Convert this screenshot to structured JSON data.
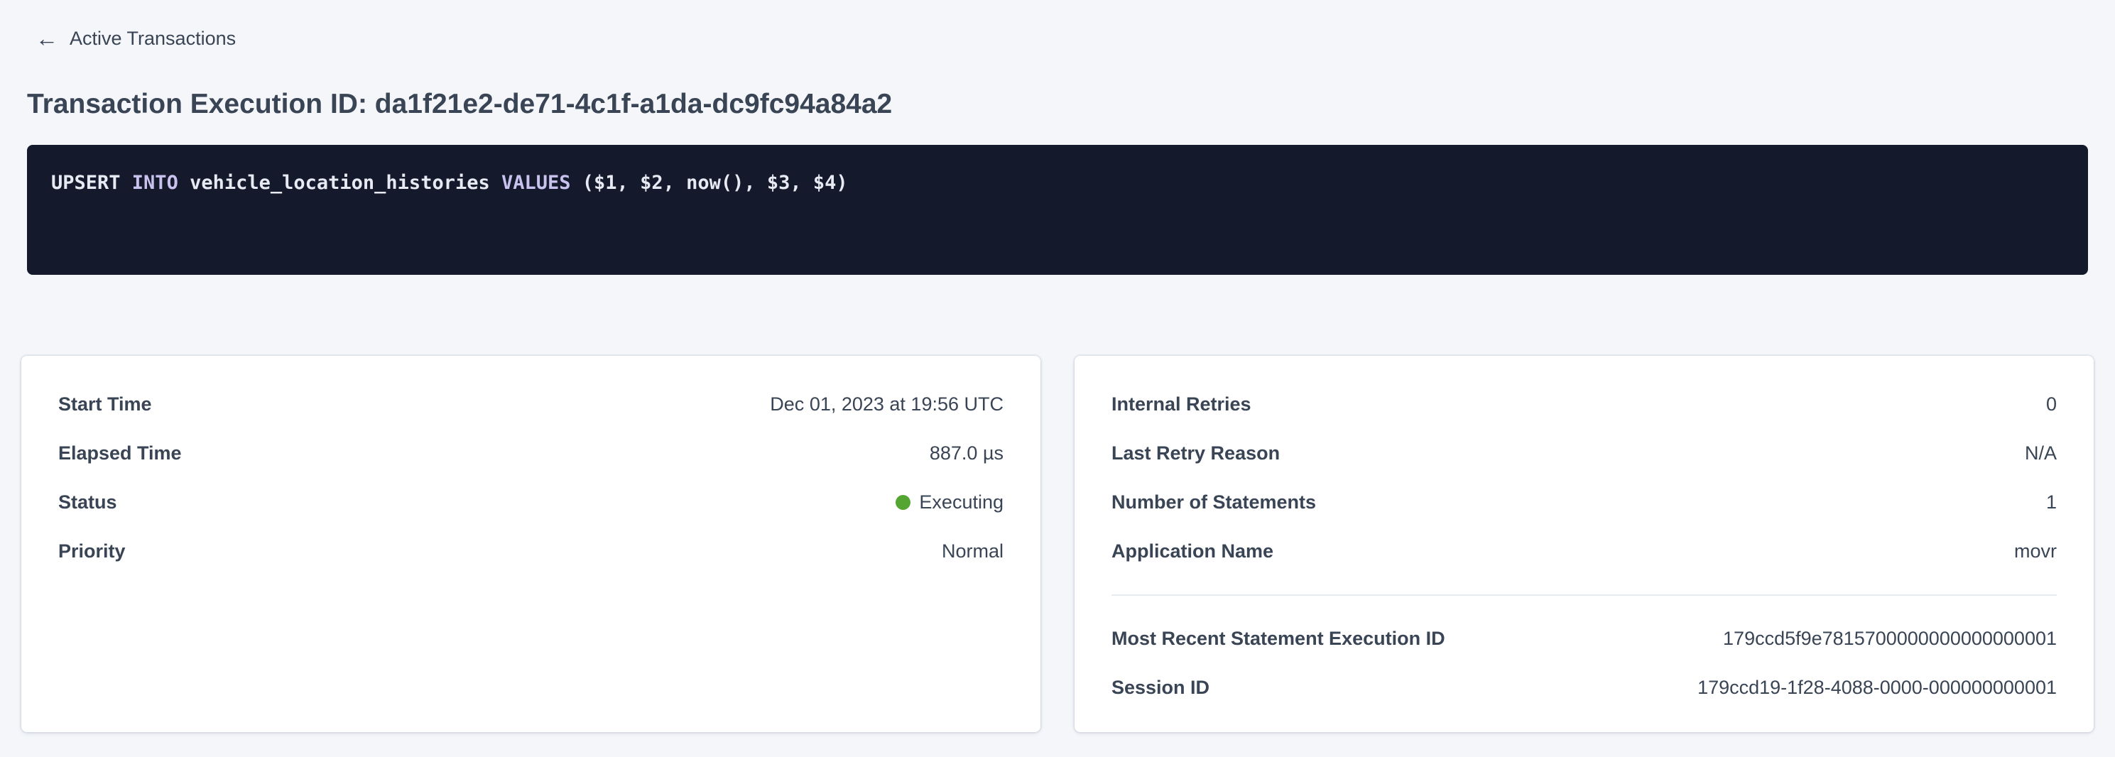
{
  "colors": {
    "page_bg": "#F4F6FA",
    "card_bg": "#FFFFFF",
    "text": "#394455",
    "link": "#2C5CEC",
    "code_bg": "#141A2B",
    "code_plain": "#E7E9F3",
    "code_keyword": "#C9C2EF",
    "status_executing": "#55A532",
    "divider": "#E7EBF1"
  },
  "header": {
    "back_label": "Active Transactions",
    "title": "Transaction Execution ID: da1f21e2-de71-4c1f-a1da-dc9fc94a84a2"
  },
  "sql_box": {
    "statement_full": "UPSERT INTO vehicle_location_histories VALUES ($1, $2, now(), $3, $4)",
    "tokens": [
      {
        "type": "plain",
        "text": "UPSERT "
      },
      {
        "type": "keyword",
        "text": "INTO"
      },
      {
        "type": "plain",
        "text": " vehicle_location_histories "
      },
      {
        "type": "keyword",
        "text": "VALUES"
      },
      {
        "type": "plain",
        "text": " ($1, $2, now(), $3, $4)"
      }
    ]
  },
  "left_card": {
    "rows": [
      {
        "label": "Start Time",
        "value": "Dec 01, 2023 at 19:56 UTC"
      },
      {
        "label": "Elapsed Time",
        "value": "887.0 µs"
      },
      {
        "label": "Status",
        "value": "Executing"
      },
      {
        "label": "Priority",
        "value": "Normal"
      }
    ],
    "status_dot_color": "#55A532"
  },
  "right_card": {
    "rows": [
      {
        "label": "Internal Retries",
        "value": "0"
      },
      {
        "label": "Last Retry Reason",
        "value": "N/A"
      },
      {
        "label": "Number of Statements",
        "value": "1"
      },
      {
        "label": "Application Name",
        "value": "movr"
      }
    ],
    "link_rows": [
      {
        "label": "Most Recent Statement Execution ID",
        "value": "179ccd5f9e7815700000000000000001"
      },
      {
        "label": "Session ID",
        "value": "179ccd19-1f28-4088-0000-000000000001"
      }
    ]
  }
}
